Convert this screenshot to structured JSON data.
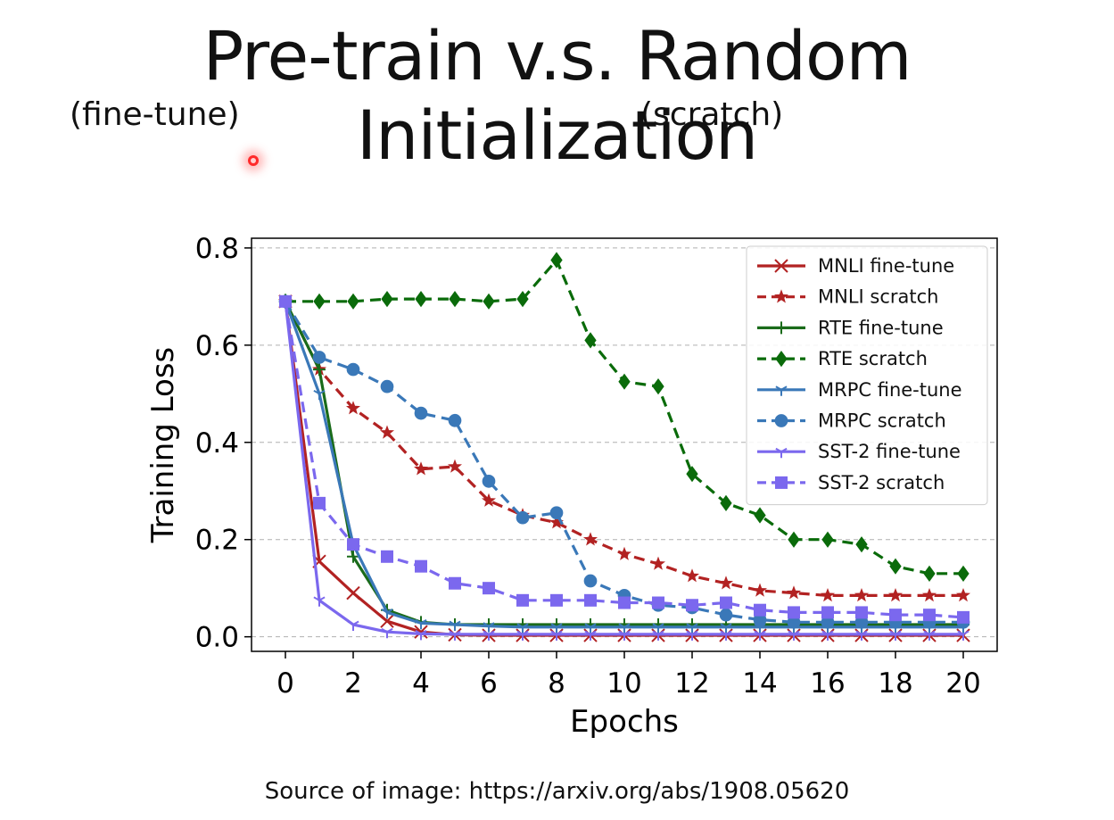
{
  "slide": {
    "title": "Pre-train v.s. Random Initialization",
    "subtitle_left": "(fine-tune)",
    "subtitle_right": "(scratch)",
    "source": "Source of image: https://arxiv.org/abs/1908.05620"
  },
  "chart_data": {
    "type": "line",
    "title": "",
    "xlabel": "Epochs",
    "ylabel": "Training Loss",
    "xlim": [
      -1,
      21
    ],
    "ylim": [
      -0.03,
      0.82
    ],
    "xticks": [
      0,
      2,
      4,
      6,
      8,
      10,
      12,
      14,
      16,
      18,
      20
    ],
    "yticks": [
      0.0,
      0.2,
      0.4,
      0.6,
      0.8
    ],
    "ytick_labels": [
      "0.0",
      "0.2",
      "0.4",
      "0.6",
      "0.8"
    ],
    "grid": "horizontal-dashed",
    "legend": "top-right",
    "x": [
      0,
      1,
      2,
      3,
      4,
      5,
      6,
      7,
      8,
      9,
      10,
      11,
      12,
      13,
      14,
      15,
      16,
      17,
      18,
      19,
      20
    ],
    "series": [
      {
        "name": "MNLI fine-tune",
        "color": "#b22222",
        "dash": "solid",
        "marker": "x",
        "values": [
          0.69,
          0.155,
          0.09,
          0.032,
          0.01,
          0.004,
          0.003,
          0.003,
          0.003,
          0.003,
          0.003,
          0.003,
          0.003,
          0.003,
          0.003,
          0.003,
          0.003,
          0.003,
          0.003,
          0.003,
          0.003
        ]
      },
      {
        "name": "MNLI scratch",
        "color": "#b22222",
        "dash": "dashed",
        "marker": "star",
        "values": [
          0.69,
          0.55,
          0.47,
          0.42,
          0.345,
          0.35,
          0.28,
          0.25,
          0.235,
          0.2,
          0.17,
          0.15,
          0.125,
          0.11,
          0.095,
          0.09,
          0.085,
          0.085,
          0.085,
          0.085,
          0.085
        ]
      },
      {
        "name": "RTE fine-tune",
        "color": "#1a6b1a",
        "dash": "solid",
        "marker": "plus",
        "values": [
          0.69,
          0.55,
          0.165,
          0.055,
          0.03,
          0.025,
          0.025,
          0.025,
          0.025,
          0.025,
          0.025,
          0.025,
          0.025,
          0.025,
          0.025,
          0.025,
          0.025,
          0.025,
          0.025,
          0.025,
          0.025
        ]
      },
      {
        "name": "RTE scratch",
        "color": "#0a6b0a",
        "dash": "dashed",
        "marker": "diamond",
        "values": [
          0.69,
          0.69,
          0.69,
          0.695,
          0.695,
          0.695,
          0.69,
          0.695,
          0.775,
          0.61,
          0.525,
          0.515,
          0.335,
          0.275,
          0.25,
          0.2,
          0.2,
          0.19,
          0.145,
          0.13,
          0.13
        ]
      },
      {
        "name": "MRPC fine-tune",
        "color": "#3a78b8",
        "dash": "solid",
        "marker": "tri",
        "values": [
          0.69,
          0.5,
          0.19,
          0.05,
          0.028,
          0.025,
          0.022,
          0.02,
          0.02,
          0.02,
          0.02,
          0.02,
          0.02,
          0.02,
          0.02,
          0.02,
          0.02,
          0.02,
          0.02,
          0.02,
          0.02
        ]
      },
      {
        "name": "MRPC scratch",
        "color": "#3a78b8",
        "dash": "dashed",
        "marker": "circle",
        "values": [
          0.69,
          0.575,
          0.55,
          0.515,
          0.46,
          0.445,
          0.32,
          0.245,
          0.255,
          0.115,
          0.085,
          0.065,
          0.06,
          0.045,
          0.035,
          0.03,
          0.03,
          0.03,
          0.03,
          0.03,
          0.03
        ]
      },
      {
        "name": "SST-2 fine-tune",
        "color": "#7b68ee",
        "dash": "solid",
        "marker": "tri",
        "values": [
          0.69,
          0.075,
          0.025,
          0.01,
          0.006,
          0.005,
          0.005,
          0.005,
          0.005,
          0.005,
          0.005,
          0.005,
          0.005,
          0.005,
          0.005,
          0.005,
          0.005,
          0.005,
          0.005,
          0.005,
          0.005
        ]
      },
      {
        "name": "SST-2 scratch",
        "color": "#7b68ee",
        "dash": "dashed",
        "marker": "square",
        "values": [
          0.69,
          0.275,
          0.19,
          0.165,
          0.145,
          0.11,
          0.1,
          0.075,
          0.075,
          0.075,
          0.07,
          0.07,
          0.065,
          0.07,
          0.055,
          0.05,
          0.05,
          0.05,
          0.045,
          0.045,
          0.04
        ]
      }
    ]
  }
}
